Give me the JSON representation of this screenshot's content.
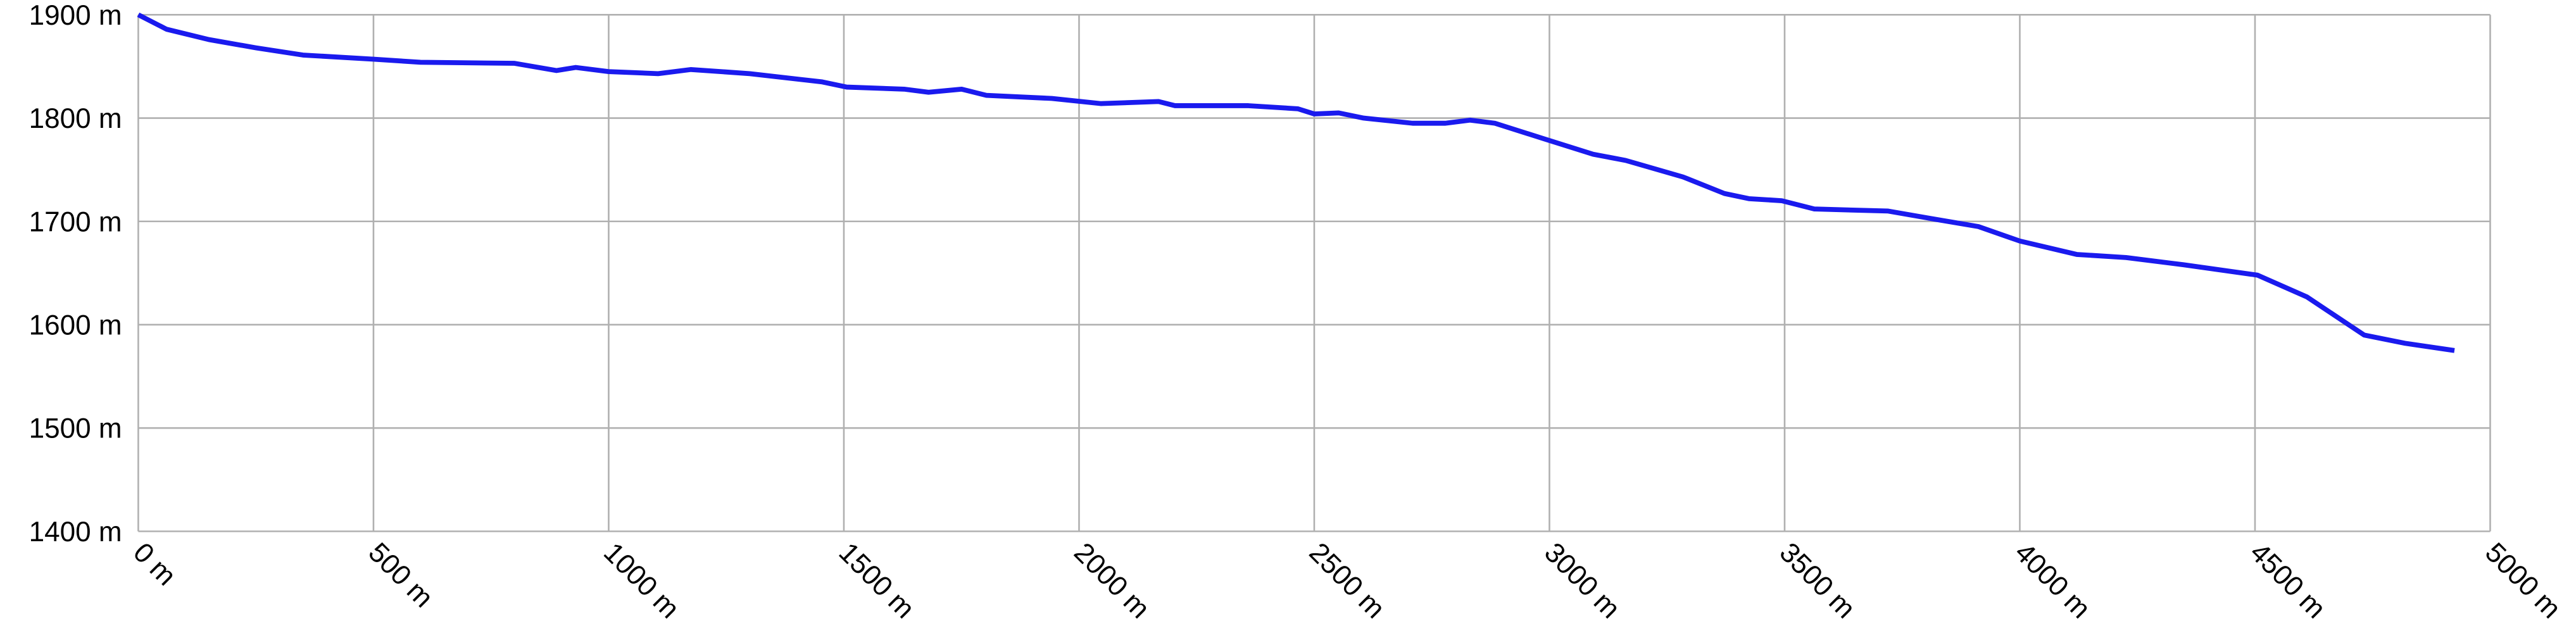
{
  "chart_data": {
    "type": "line",
    "grid": true,
    "x": [
      0,
      60,
      150,
      250,
      350,
      500,
      600,
      800,
      889,
      930,
      1000,
      1105,
      1175,
      1300,
      1454,
      1506,
      1628,
      1680,
      1750,
      1803,
      1942,
      2047,
      2169,
      2204,
      2360,
      2465,
      2500,
      2552,
      2605,
      2709,
      2779,
      2831,
      2884,
      2988,
      3093,
      3162,
      3284,
      3372,
      3424,
      3494,
      3563,
      3720,
      3808,
      3912,
      4000,
      4121,
      4226,
      4348,
      4505,
      4610,
      4732,
      4819,
      4924
    ],
    "series": [
      {
        "color": "#1a1aee",
        "values": [
          1900,
          1886,
          1876,
          1868,
          1861,
          1857,
          1854,
          1853,
          1846,
          1849,
          1845,
          1843,
          1847,
          1843,
          1835,
          1830,
          1828,
          1825,
          1828,
          1822,
          1819,
          1814,
          1816,
          1812,
          1812,
          1809,
          1804,
          1805,
          1800,
          1795,
          1795,
          1798,
          1795,
          1780,
          1765,
          1759,
          1743,
          1727,
          1722,
          1720,
          1712,
          1710,
          1703,
          1695,
          1681,
          1668,
          1665,
          1658,
          1648,
          1627,
          1590,
          1582,
          1575
        ]
      }
    ],
    "xlim": [
      0,
      5000
    ],
    "xticks": [
      {
        "value": 0,
        "label": "0 m"
      },
      {
        "value": 500,
        "label": "500 m"
      },
      {
        "value": 1000,
        "label": "1000 m"
      },
      {
        "value": 1500,
        "label": "1500 m"
      },
      {
        "value": 2000,
        "label": "2000 m"
      },
      {
        "value": 2500,
        "label": "2500 m"
      },
      {
        "value": 3000,
        "label": "3000 m"
      },
      {
        "value": 3500,
        "label": "3500 m"
      },
      {
        "value": 4000,
        "label": "4000 m"
      },
      {
        "value": 4500,
        "label": "4500 m"
      },
      {
        "value": 5000,
        "label": "5000 m"
      }
    ],
    "ylim": [
      1400,
      1900
    ],
    "yticks": [
      {
        "value": 1400,
        "label": "1400 m"
      },
      {
        "value": 1500,
        "label": "1500 m"
      },
      {
        "value": 1600,
        "label": "1600 m"
      },
      {
        "value": 1700,
        "label": "1700 m"
      },
      {
        "value": 1800,
        "label": "1800 m"
      },
      {
        "value": 1900,
        "label": "1900 m"
      }
    ]
  }
}
